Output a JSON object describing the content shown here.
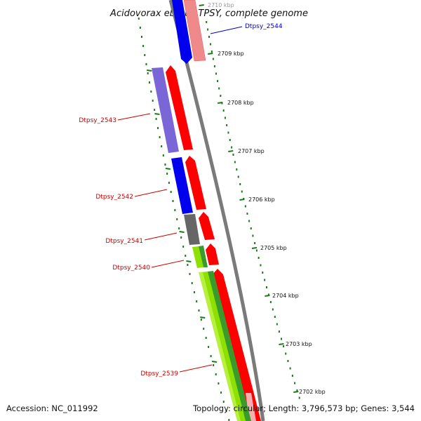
{
  "title": "Acidovorax ebreus TPSY, complete genome",
  "footer": {
    "accession": "Accession: NC_011992",
    "summary": "Topology: circular; Length: 3,796,573 bp; Genes: 3,544"
  },
  "ticks": [
    "2710 kbp",
    "2709 kbp",
    "2708 kbp",
    "2707 kbp",
    "2706 kbp",
    "2705 kbp",
    "2704 kbp",
    "2703 kbp",
    "2702 kbp"
  ],
  "genes": [
    {
      "label": "Dtpsy_2544",
      "color": "#0000cc"
    },
    {
      "label": "Dtpsy_2543",
      "color": "#cc0000"
    },
    {
      "label": "Dtpsy_2542",
      "color": "#cc0000"
    },
    {
      "label": "Dtpsy_2541",
      "color": "#cc0000"
    },
    {
      "label": "Dtpsy_2540",
      "color": "#cc0000"
    },
    {
      "label": "Dtpsy_2539",
      "color": "#cc0000"
    }
  ],
  "colors": {
    "backbone": "#7a7a7a",
    "forward_cds": "#ff0000",
    "forward_cds_light": "#f08a8a",
    "reverse_blue": "#0000ee",
    "reverse_purple": "#7a66d6",
    "reverse_grey": "#666666",
    "reverse_green": "#8ee000",
    "reverse_darkgreen": "#3a9a2a",
    "tick": "#1a7a1a"
  }
}
